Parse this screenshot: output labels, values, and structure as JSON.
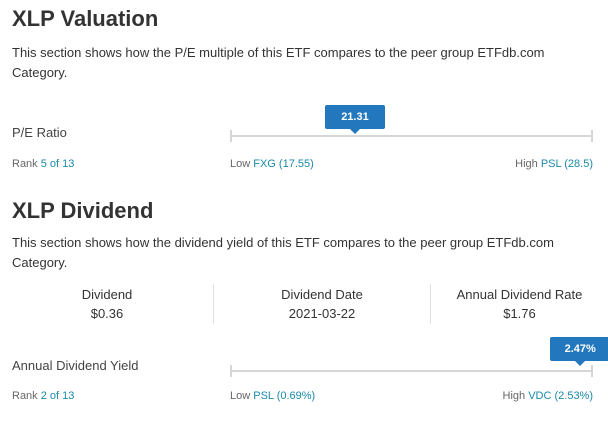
{
  "valuation": {
    "title": "XLP Valuation",
    "description": "This section shows how the P/E multiple of this ETF compares to the peer group ETFdb.com Category.",
    "metric_label": "P/E Ratio",
    "value": "21.31",
    "value_num": 21.31,
    "low_num": 17.55,
    "high_num": 28.5,
    "rank_prefix": "Rank",
    "rank": "5 of 13",
    "low_prefix": "Low",
    "low": "FXG (17.55)",
    "high_prefix": "High",
    "high": "PSL (28.5)"
  },
  "dividend": {
    "title": "XLP Dividend",
    "description": "This section shows how the dividend yield of this ETF compares to the peer group ETFdb.com Category.",
    "stats": [
      {
        "label": "Dividend",
        "value": "$0.36"
      },
      {
        "label": "Dividend Date",
        "value": "2021-03-22"
      },
      {
        "label": "Annual Dividend Rate",
        "value": "$1.76"
      }
    ],
    "metric_label": "Annual Dividend Yield",
    "value": "2.47%",
    "value_num": 2.47,
    "low_num": 0.69,
    "high_num": 2.53,
    "rank_prefix": "Rank",
    "rank": "2 of 13",
    "low_prefix": "Low",
    "low": "PSL (0.69%)",
    "high_prefix": "High",
    "high": "VDC (2.53%)"
  },
  "colors": {
    "accent": "#2378bd",
    "link": "#1a8aa8"
  }
}
